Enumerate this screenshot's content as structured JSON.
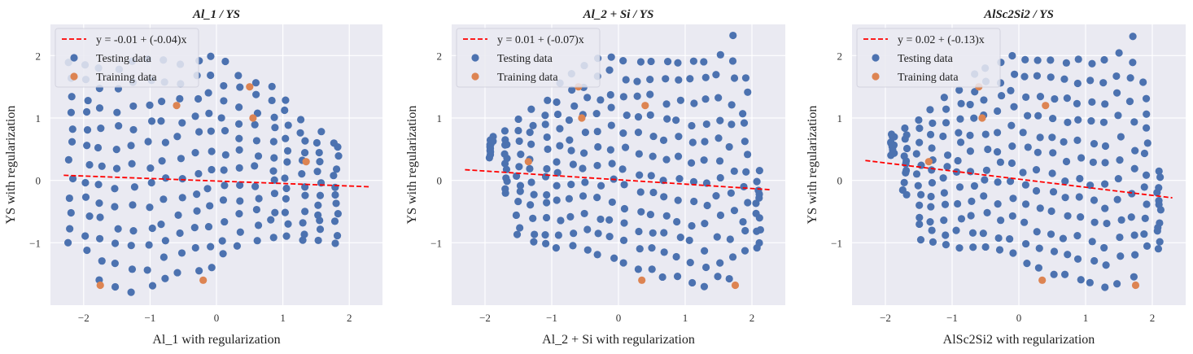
{
  "colors": {
    "background": "#eaeaf2",
    "grid": "#ffffff",
    "testing": "#4c72b0",
    "training": "#dd8452",
    "fit": "#ff0000"
  },
  "legend_labels": {
    "testing": "Testing data",
    "training": "Training data"
  },
  "chart_data": [
    {
      "type": "scatter",
      "title": "Al_1 / YS",
      "xlabel": "Al_1 with regularization",
      "ylabel": "YS with regularization",
      "xlim": [
        -2.5,
        2.5
      ],
      "ylim": [
        -2.0,
        2.5
      ],
      "xticks": [
        -2,
        -1,
        0,
        1,
        2
      ],
      "yticks": [
        -1,
        0,
        1,
        2
      ],
      "grid": true,
      "legend_position": "top-left",
      "fit": {
        "label": "y = -0.01 + (-0.04)x",
        "intercept": -0.01,
        "slope": -0.04,
        "x_range": [
          -2.3,
          2.3
        ]
      },
      "testing": {
        "x_min": -2.2,
        "x_max": 1.8,
        "cloud": {
          "cols": [
            [
              -2.2,
              -1.05,
              1.9
            ],
            [
              -1.95,
              -1.1,
              1.85
            ],
            [
              -1.75,
              -1.55,
              1.8
            ],
            [
              -1.5,
              -1.65,
              1.75
            ],
            [
              -1.25,
              -1.75,
              1.85
            ],
            [
              -1.0,
              -1.72,
              1.9
            ],
            [
              -0.8,
              -1.6,
              1.9
            ],
            [
              -0.55,
              -1.5,
              1.9
            ],
            [
              -0.3,
              -1.4,
              1.95
            ],
            [
              -0.1,
              -1.35,
              2.0
            ],
            [
              0.1,
              -1.2,
              1.85
            ],
            [
              0.35,
              -1.05,
              1.7
            ],
            [
              0.6,
              -0.95,
              1.55
            ],
            [
              0.85,
              -0.9,
              1.45
            ],
            [
              1.05,
              -0.95,
              1.3
            ],
            [
              1.3,
              -1.0,
              1.0
            ],
            [
              1.55,
              -1.0,
              0.75
            ],
            [
              1.8,
              -1.0,
              0.65
            ]
          ],
          "rows": 12
        }
      },
      "training": [
        {
          "x": -1.75,
          "y": -1.68
        },
        {
          "x": -0.6,
          "y": 1.2
        },
        {
          "x": -0.2,
          "y": -1.6
        },
        {
          "x": 0.5,
          "y": 1.5
        },
        {
          "x": 0.55,
          "y": 1.0
        },
        {
          "x": 1.35,
          "y": 0.3
        }
      ]
    },
    {
      "type": "scatter",
      "title": "Al_2 + Si / YS",
      "xlabel": "Al_2 + Si with regularization",
      "ylabel": "YS with regularization",
      "xlim": [
        -2.5,
        2.5
      ],
      "ylim": [
        -2.0,
        2.5
      ],
      "xticks": [
        -2,
        -1,
        0,
        1,
        2
      ],
      "yticks": [
        -1,
        0,
        1,
        2
      ],
      "grid": true,
      "legend_position": "top-left",
      "fit": {
        "label": "y = 0.01 + (-0.07)x",
        "intercept": 0.01,
        "slope": -0.07,
        "x_range": [
          -2.3,
          2.3
        ]
      },
      "testing": {
        "x_min": -1.9,
        "x_max": 2.2,
        "cloud": {
          "cols": [
            [
              -1.9,
              0.4,
              0.7
            ],
            [
              -1.7,
              -0.2,
              0.8
            ],
            [
              -1.5,
              -0.9,
              0.95
            ],
            [
              -1.3,
              -1.0,
              1.1
            ],
            [
              -1.1,
              -1.05,
              1.3
            ],
            [
              -0.9,
              -1.05,
              1.5
            ],
            [
              -0.7,
              -1.05,
              1.7
            ],
            [
              -0.5,
              -1.1,
              1.8
            ],
            [
              -0.3,
              -1.15,
              1.9
            ],
            [
              -0.1,
              -1.2,
              2.0
            ],
            [
              0.1,
              -1.3,
              1.95
            ],
            [
              0.3,
              -1.4,
              1.95
            ],
            [
              0.5,
              -1.45,
              1.95
            ],
            [
              0.7,
              -1.5,
              1.9
            ],
            [
              0.9,
              -1.55,
              1.9
            ],
            [
              1.1,
              -1.65,
              1.9
            ],
            [
              1.3,
              -1.75,
              1.95
            ],
            [
              1.5,
              -1.6,
              2.0
            ],
            [
              1.7,
              -1.6,
              2.3
            ],
            [
              1.9,
              -1.1,
              1.6
            ],
            [
              2.1,
              -1.05,
              0.1
            ]
          ],
          "rows": 12
        }
      },
      "training": [
        {
          "x": -1.35,
          "y": 0.3
        },
        {
          "x": -0.6,
          "y": 1.5
        },
        {
          "x": -0.55,
          "y": 1.0
        },
        {
          "x": 0.35,
          "y": -1.6
        },
        {
          "x": 0.4,
          "y": 1.2
        },
        {
          "x": 1.75,
          "y": -1.68
        }
      ]
    },
    {
      "type": "scatter",
      "title": "AlSc2Si2 / YS",
      "xlabel": "AlSc2Si2 with regularization",
      "ylabel": "YS with regularization",
      "xlim": [
        -2.5,
        2.5
      ],
      "ylim": [
        -2.0,
        2.5
      ],
      "xticks": [
        -2,
        -1,
        0,
        1,
        2
      ],
      "yticks": [
        -1,
        0,
        1,
        2
      ],
      "grid": true,
      "legend_position": "top-left",
      "fit": {
        "label": "y = 0.02 + (-0.13)x",
        "intercept": 0.02,
        "slope": -0.13,
        "x_range": [
          -2.3,
          2.3
        ]
      },
      "testing": {
        "x_min": -1.9,
        "x_max": 2.2,
        "cloud": {
          "cols": [
            [
              -1.9,
              0.4,
              0.7
            ],
            [
              -1.7,
              -0.2,
              0.8
            ],
            [
              -1.5,
              -0.9,
              0.95
            ],
            [
              -1.3,
              -1.0,
              1.1
            ],
            [
              -1.1,
              -1.05,
              1.3
            ],
            [
              -0.9,
              -1.05,
              1.5
            ],
            [
              -0.7,
              -1.05,
              1.7
            ],
            [
              -0.5,
              -1.1,
              1.8
            ],
            [
              -0.3,
              -1.15,
              1.9
            ],
            [
              -0.1,
              -1.2,
              2.0
            ],
            [
              0.1,
              -1.3,
              1.95
            ],
            [
              0.3,
              -1.4,
              1.95
            ],
            [
              0.5,
              -1.45,
              1.95
            ],
            [
              0.7,
              -1.5,
              1.9
            ],
            [
              0.9,
              -1.55,
              1.9
            ],
            [
              1.1,
              -1.65,
              1.9
            ],
            [
              1.3,
              -1.75,
              1.95
            ],
            [
              1.5,
              -1.6,
              2.0
            ],
            [
              1.7,
              -1.6,
              2.3
            ],
            [
              1.9,
              -1.1,
              1.6
            ],
            [
              2.1,
              -1.05,
              0.1
            ]
          ],
          "rows": 12
        }
      },
      "training": [
        {
          "x": -1.35,
          "y": 0.3
        },
        {
          "x": -0.6,
          "y": 1.5
        },
        {
          "x": -0.55,
          "y": 1.0
        },
        {
          "x": 0.35,
          "y": -1.6
        },
        {
          "x": 0.4,
          "y": 1.2
        },
        {
          "x": 1.75,
          "y": -1.68
        }
      ]
    }
  ]
}
